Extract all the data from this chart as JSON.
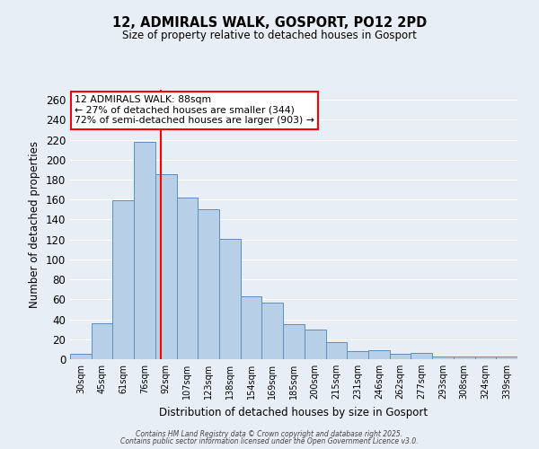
{
  "title": "12, ADMIRALS WALK, GOSPORT, PO12 2PD",
  "subtitle": "Size of property relative to detached houses in Gosport",
  "xlabel": "Distribution of detached houses by size in Gosport",
  "ylabel": "Number of detached properties",
  "categories": [
    "30sqm",
    "45sqm",
    "61sqm",
    "76sqm",
    "92sqm",
    "107sqm",
    "123sqm",
    "138sqm",
    "154sqm",
    "169sqm",
    "185sqm",
    "200sqm",
    "215sqm",
    "231sqm",
    "246sqm",
    "262sqm",
    "277sqm",
    "293sqm",
    "308sqm",
    "324sqm",
    "339sqm"
  ],
  "values": [
    5,
    36,
    159,
    218,
    185,
    162,
    150,
    121,
    63,
    57,
    35,
    30,
    17,
    8,
    9,
    5,
    6,
    3,
    3,
    3,
    3
  ],
  "bar_color": "#b8cfe8",
  "bar_edge_color": "#5a8fc0",
  "vline_color": "red",
  "vline_x": 3.75,
  "annotation_text": "12 ADMIRALS WALK: 88sqm\n← 27% of detached houses are smaller (344)\n72% of semi-detached houses are larger (903) →",
  "annotation_box_color": "white",
  "annotation_box_edge_color": "red",
  "ylim": [
    0,
    270
  ],
  "yticks": [
    0,
    20,
    40,
    60,
    80,
    100,
    120,
    140,
    160,
    180,
    200,
    220,
    240,
    260
  ],
  "background_color": "#e8eef5",
  "grid_color": "white",
  "footer_line1": "Contains HM Land Registry data © Crown copyright and database right 2025.",
  "footer_line2": "Contains public sector information licensed under the Open Government Licence v3.0."
}
